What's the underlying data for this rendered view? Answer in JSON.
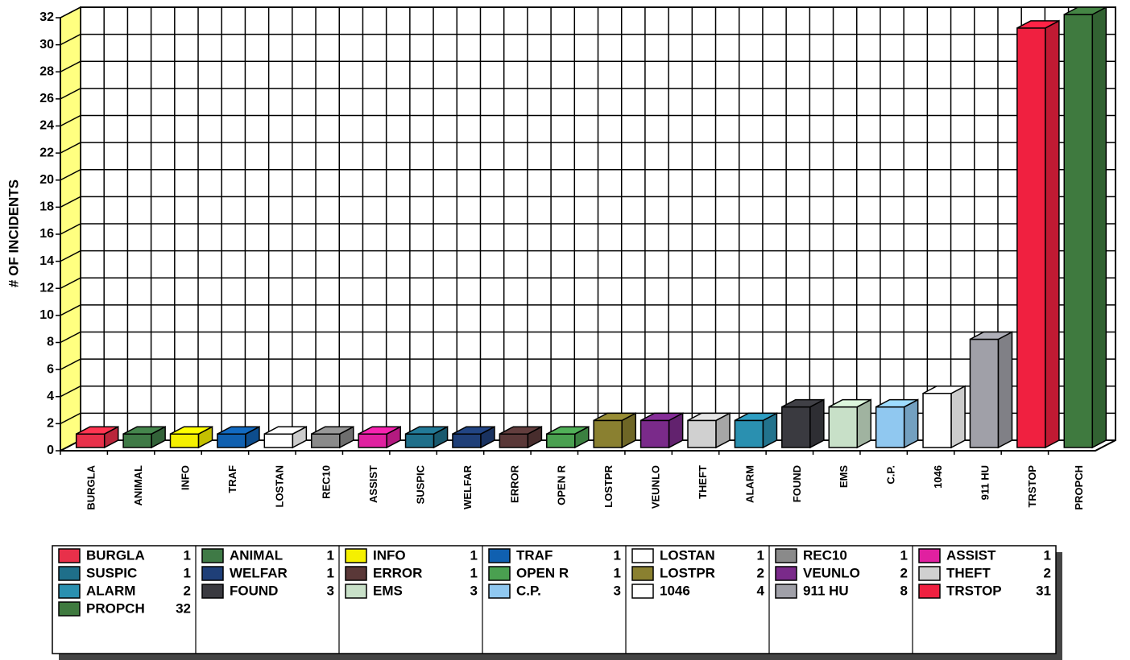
{
  "chart_data": {
    "type": "bar3d",
    "y_axis_label": "# OF INCIDENTS",
    "categories": [
      "BURGLA",
      "ANIMAL",
      "INFO",
      "TRAF",
      "LOSTAN",
      "REC10",
      "ASSIST",
      "SUSPIC",
      "WELFAR",
      "ERROR",
      "OPEN R",
      "LOSTPR",
      "VEUNLO",
      "THEFT",
      "ALARM",
      "FOUND",
      "EMS",
      "C.P.",
      "1046",
      "911 HU",
      "TRSTOP",
      "PROPCH"
    ],
    "values": [
      1,
      1,
      1,
      1,
      1,
      1,
      1,
      1,
      1,
      1,
      1,
      2,
      2,
      2,
      2,
      3,
      3,
      3,
      4,
      8,
      31,
      32
    ],
    "colors": [
      "#e8304a",
      "#3f7a46",
      "#f5f000",
      "#1060b0",
      "#ffffff",
      "#8a8a8a",
      "#e020a0",
      "#1f6f8a",
      "#1f3f78",
      "#5a3838",
      "#4aa050",
      "#8a8030",
      "#7a2a8a",
      "#d0d0d0",
      "#2a90b0",
      "#3a3a40",
      "#c8e0c8",
      "#90c8f0",
      "#ffffff",
      "#a0a0a8",
      "#f02040",
      "#3f7a3f"
    ],
    "ylim": [
      0,
      32
    ],
    "yticks": [
      0,
      2,
      4,
      6,
      8,
      10,
      12,
      14,
      16,
      18,
      20,
      22,
      24,
      26,
      28,
      30,
      32
    ],
    "grid": true,
    "wall_color": "#ffff80",
    "legend": "bottom"
  }
}
